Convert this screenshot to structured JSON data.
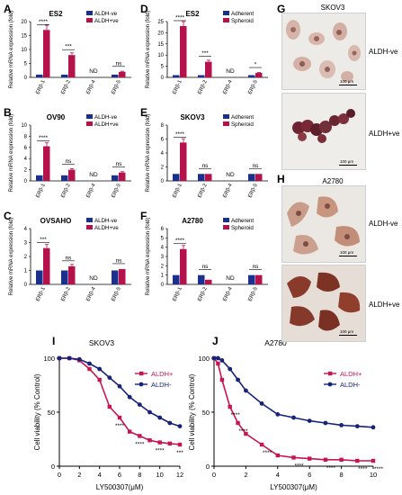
{
  "colors": {
    "blue": "#1b2f8c",
    "red": "#b5124b",
    "navy": "#17227a",
    "pink": "#c8144f"
  },
  "bar_panels": [
    {
      "id": "A",
      "title": "ES2",
      "ylabel": "Relative mRNA expression (fold)",
      "categories": [
        "ERβ-1",
        "ERβ-2",
        "ERβ-4",
        "ERβ-5"
      ],
      "legend": [
        "ALDH-ve",
        "ALDH+ve"
      ],
      "yticks": [
        0,
        5,
        10,
        15,
        20
      ],
      "ylim": [
        0,
        20
      ],
      "series": [
        {
          "name": "ALDH-ve",
          "values": [
            1,
            1,
            null,
            1
          ]
        },
        {
          "name": "ALDH+ve",
          "values": [
            17,
            8,
            null,
            2
          ]
        }
      ],
      "annotations": [
        "****",
        "***",
        "ND",
        "ns"
      ]
    },
    {
      "id": "B",
      "title": "OV90",
      "ylabel": "Relative mRNA expression (fold)",
      "categories": [
        "ERβ-1",
        "ERβ-2",
        "ERβ-4",
        "ERβ-5"
      ],
      "legend": [
        "ALDH-ve",
        "ALDH+ve"
      ],
      "yticks": [
        0,
        2,
        4,
        6,
        8,
        10
      ],
      "ylim": [
        0,
        10
      ],
      "series": [
        {
          "name": "ALDH-ve",
          "values": [
            1,
            1,
            null,
            1
          ]
        },
        {
          "name": "ALDH+ve",
          "values": [
            6.2,
            2,
            null,
            1.5
          ]
        }
      ],
      "annotations": [
        "****",
        "ns",
        "ND",
        "ns"
      ]
    },
    {
      "id": "C",
      "title": "OVSAHO",
      "ylabel": "Relative mRNA expression (fold)",
      "categories": [
        "ERβ-1",
        "ERβ-2",
        "ERβ-4",
        "ERβ-5"
      ],
      "legend": [
        "ALDH-ve",
        "ALDH+ve"
      ],
      "yticks": [
        0,
        1,
        2,
        3,
        4
      ],
      "ylim": [
        0,
        4
      ],
      "series": [
        {
          "name": "ALDH-ve",
          "values": [
            1,
            1,
            null,
            1
          ]
        },
        {
          "name": "ALDH+ve",
          "values": [
            2.6,
            1.3,
            null,
            1.1
          ]
        }
      ],
      "annotations": [
        "***",
        "ns",
        "ND",
        "ns"
      ]
    },
    {
      "id": "D",
      "title": "ES2",
      "ylabel": "Relative mRNA expression (fold)",
      "categories": [
        "ERβ-1",
        "ERβ-2",
        "ERβ-4",
        "ERβ-5"
      ],
      "legend": [
        "Adherent",
        "Spheroid"
      ],
      "yticks": [
        0,
        5,
        10,
        15,
        20,
        25
      ],
      "ylim": [
        0,
        25
      ],
      "series": [
        {
          "name": "Adherent",
          "values": [
            1,
            1,
            null,
            1
          ]
        },
        {
          "name": "Spheroid",
          "values": [
            23,
            7,
            null,
            2
          ]
        }
      ],
      "annotations": [
        "****",
        "***",
        "ND",
        "*"
      ]
    },
    {
      "id": "E",
      "title": "SKOV3",
      "ylabel": "Relative mRNA expression (fold)",
      "categories": [
        "ERβ-1",
        "ERβ-2",
        "ERβ-4",
        "ERβ-5"
      ],
      "legend": [
        "Adherent",
        "Spheroid"
      ],
      "yticks": [
        0,
        2,
        4,
        6,
        8
      ],
      "ylim": [
        0,
        8
      ],
      "series": [
        {
          "name": "Adherent",
          "values": [
            1,
            1,
            null,
            1
          ]
        },
        {
          "name": "Spheroid",
          "values": [
            5.5,
            1,
            null,
            1
          ]
        }
      ],
      "annotations": [
        "****",
        "ns",
        "ND",
        "ns"
      ]
    },
    {
      "id": "F",
      "title": "A2780",
      "ylabel": "Relative mRNA expression (fold)",
      "categories": [
        "ERβ-1",
        "ERβ-2",
        "ERβ-4",
        "ERβ-5"
      ],
      "legend": [
        "Adherent",
        "Spheroid"
      ],
      "yticks": [
        0,
        1,
        2,
        3,
        4,
        5,
        6
      ],
      "ylim": [
        0,
        6
      ],
      "series": [
        {
          "name": "Adherent",
          "values": [
            1,
            1,
            null,
            1
          ]
        },
        {
          "name": "Spheroid",
          "values": [
            3.8,
            0.5,
            null,
            1
          ]
        }
      ],
      "annotations": [
        "****",
        "ns",
        "ND",
        "ns"
      ]
    }
  ],
  "line_panels": [
    {
      "id": "I",
      "title": "SKOV3",
      "xlabel": "LY500307(μM)",
      "ylabel": "Cell viability (% Control)",
      "xticks": [
        0,
        2,
        4,
        6,
        8,
        10,
        12
      ],
      "yticks": [
        0,
        50,
        100
      ],
      "xlim": [
        0,
        12
      ],
      "ylim": [
        0,
        100
      ],
      "series": [
        {
          "name": "ALDH+",
          "x": [
            0,
            1,
            2,
            3,
            4,
            5,
            6,
            7,
            8,
            9,
            10,
            11,
            12
          ],
          "y": [
            100,
            100,
            98,
            90,
            80,
            55,
            45,
            32,
            28,
            24,
            22,
            21,
            20
          ]
        },
        {
          "name": "ALDH-",
          "x": [
            0,
            1,
            2,
            3,
            4,
            5,
            6,
            7,
            8,
            9,
            10,
            11,
            12
          ],
          "y": [
            100,
            100,
            99,
            95,
            90,
            82,
            74,
            64,
            57,
            50,
            45,
            40,
            37
          ]
        }
      ],
      "annotations": [
        "****",
        "****",
        "****",
        "***"
      ]
    },
    {
      "id": "J",
      "title": "A2780",
      "xlabel": "LY500307(μM)",
      "ylabel": "Cell viability (% Control)",
      "xticks": [
        0,
        2,
        4,
        6,
        8,
        10
      ],
      "yticks": [
        0,
        50,
        100
      ],
      "xlim": [
        0,
        10
      ],
      "ylim": [
        0,
        100
      ],
      "series": [
        {
          "name": "ALDH+",
          "x": [
            0,
            0.25,
            0.5,
            1,
            1.5,
            2,
            3,
            4,
            5,
            6,
            7,
            8,
            9,
            10
          ],
          "y": [
            100,
            95,
            80,
            55,
            40,
            30,
            20,
            10,
            8,
            7,
            6,
            6,
            5,
            5
          ]
        },
        {
          "name": "ALDH-",
          "x": [
            0,
            0.25,
            0.5,
            1,
            1.5,
            2,
            3,
            4,
            5,
            6,
            7,
            8,
            9,
            10
          ],
          "y": [
            100,
            100,
            98,
            90,
            80,
            70,
            58,
            48,
            45,
            42,
            40,
            38,
            37,
            36
          ]
        }
      ],
      "annotations": [
        "****",
        "****",
        "****",
        "****",
        "****",
        "****",
        "****"
      ]
    }
  ],
  "micro_panels": [
    {
      "id": "G",
      "title": "SKOV3",
      "rows": [
        {
          "label": "ALDH-ve",
          "scale": "100 µm"
        },
        {
          "label": "ALDH+ve",
          "scale": "100 µm"
        }
      ]
    },
    {
      "id": "H",
      "title": "A2780",
      "rows": [
        {
          "label": "ALDH-ve",
          "scale": "100 µm"
        },
        {
          "label": "ALDH+ve",
          "scale": "100 µm"
        }
      ]
    }
  ]
}
